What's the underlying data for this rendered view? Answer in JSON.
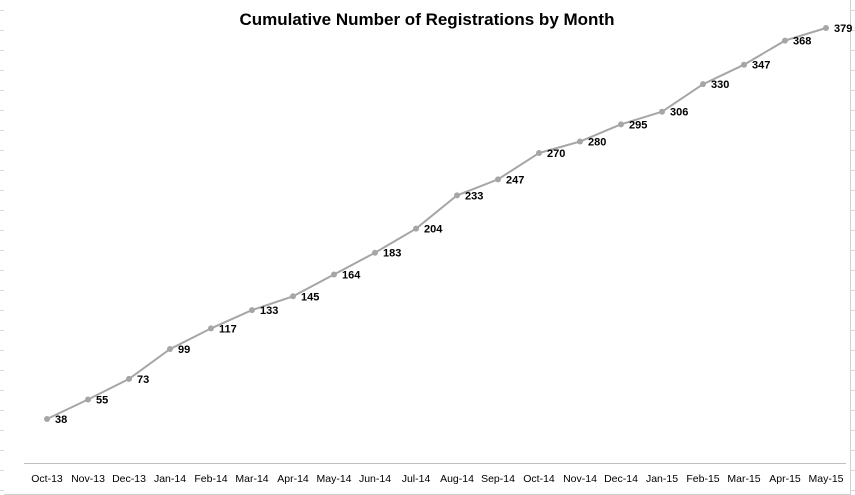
{
  "chart_data": {
    "type": "line",
    "title": "Cumulative Number of Registrations by Month",
    "xlabel": "",
    "ylabel": "",
    "categories": [
      "Oct-13",
      "Nov-13",
      "Dec-13",
      "Jan-14",
      "Feb-14",
      "Mar-14",
      "Apr-14",
      "May-14",
      "Jun-14",
      "Jul-14",
      "Aug-14",
      "Sep-14",
      "Oct-14",
      "Nov-14",
      "Dec-14",
      "Jan-15",
      "Feb-15",
      "Mar-15",
      "Apr-15",
      "May-15"
    ],
    "series": [
      {
        "values": [
          38,
          55,
          73,
          99,
          117,
          133,
          145,
          164,
          183,
          204,
          233,
          247,
          270,
          280,
          295,
          306,
          330,
          347,
          368,
          379
        ],
        "color": "#a6a6a6"
      }
    ],
    "data_labels": true,
    "grid": false,
    "legend": "none"
  }
}
